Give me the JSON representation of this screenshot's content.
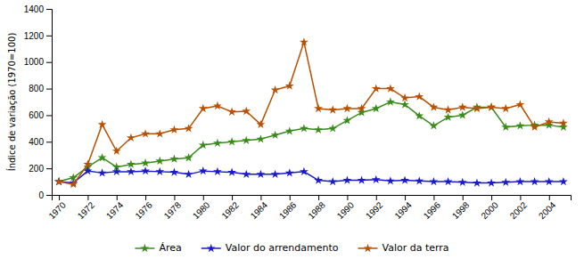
{
  "chart_data": {
    "type": "line",
    "x": [
      1970,
      1971,
      1972,
      1973,
      1974,
      1975,
      1976,
      1977,
      1978,
      1979,
      1980,
      1981,
      1982,
      1983,
      1984,
      1985,
      1986,
      1987,
      1988,
      1989,
      1990,
      1991,
      1992,
      1993,
      1994,
      1995,
      1996,
      1997,
      1998,
      1999,
      2000,
      2001,
      2002,
      2003,
      2004,
      2005
    ],
    "series": [
      {
        "name": "Área",
        "color": "#3a8c1a",
        "marker": "star",
        "values": [
          100,
          130,
          210,
          280,
          210,
          230,
          240,
          255,
          270,
          280,
          375,
          390,
          400,
          410,
          420,
          450,
          480,
          500,
          490,
          500,
          560,
          620,
          650,
          700,
          680,
          595,
          520,
          585,
          600,
          660,
          660,
          510,
          520,
          525,
          525,
          510
        ]
      },
      {
        "name": "Valor do arrendamento",
        "color": "#1a1acc",
        "marker": "star",
        "values": [
          100,
          90,
          180,
          165,
          175,
          175,
          180,
          175,
          170,
          155,
          180,
          175,
          170,
          155,
          155,
          155,
          165,
          175,
          110,
          100,
          110,
          110,
          115,
          105,
          110,
          105,
          100,
          100,
          95,
          90,
          90,
          95,
          100,
          100,
          100,
          100
        ]
      },
      {
        "name": "Valor da terra",
        "color": "#b85000",
        "marker": "star",
        "values": [
          100,
          80,
          230,
          530,
          330,
          430,
          460,
          460,
          490,
          500,
          650,
          670,
          625,
          630,
          530,
          790,
          820,
          1150,
          650,
          640,
          650,
          650,
          800,
          800,
          730,
          740,
          660,
          640,
          660,
          650,
          660,
          650,
          680,
          510,
          550,
          540
        ]
      }
    ],
    "ylabel": "Índice de variação (1970=100)",
    "xlim": [
      1969.5,
      2005.5
    ],
    "xticks": [
      1970,
      1972,
      1974,
      1976,
      1978,
      1980,
      1982,
      1984,
      1986,
      1988,
      1990,
      1992,
      1994,
      1996,
      1998,
      2000,
      2002,
      2004
    ],
    "ylim": [
      0,
      1400
    ],
    "yticks": [
      0,
      200,
      400,
      600,
      800,
      1000,
      1200,
      1400
    ],
    "grid": false,
    "legend": "bottom"
  }
}
